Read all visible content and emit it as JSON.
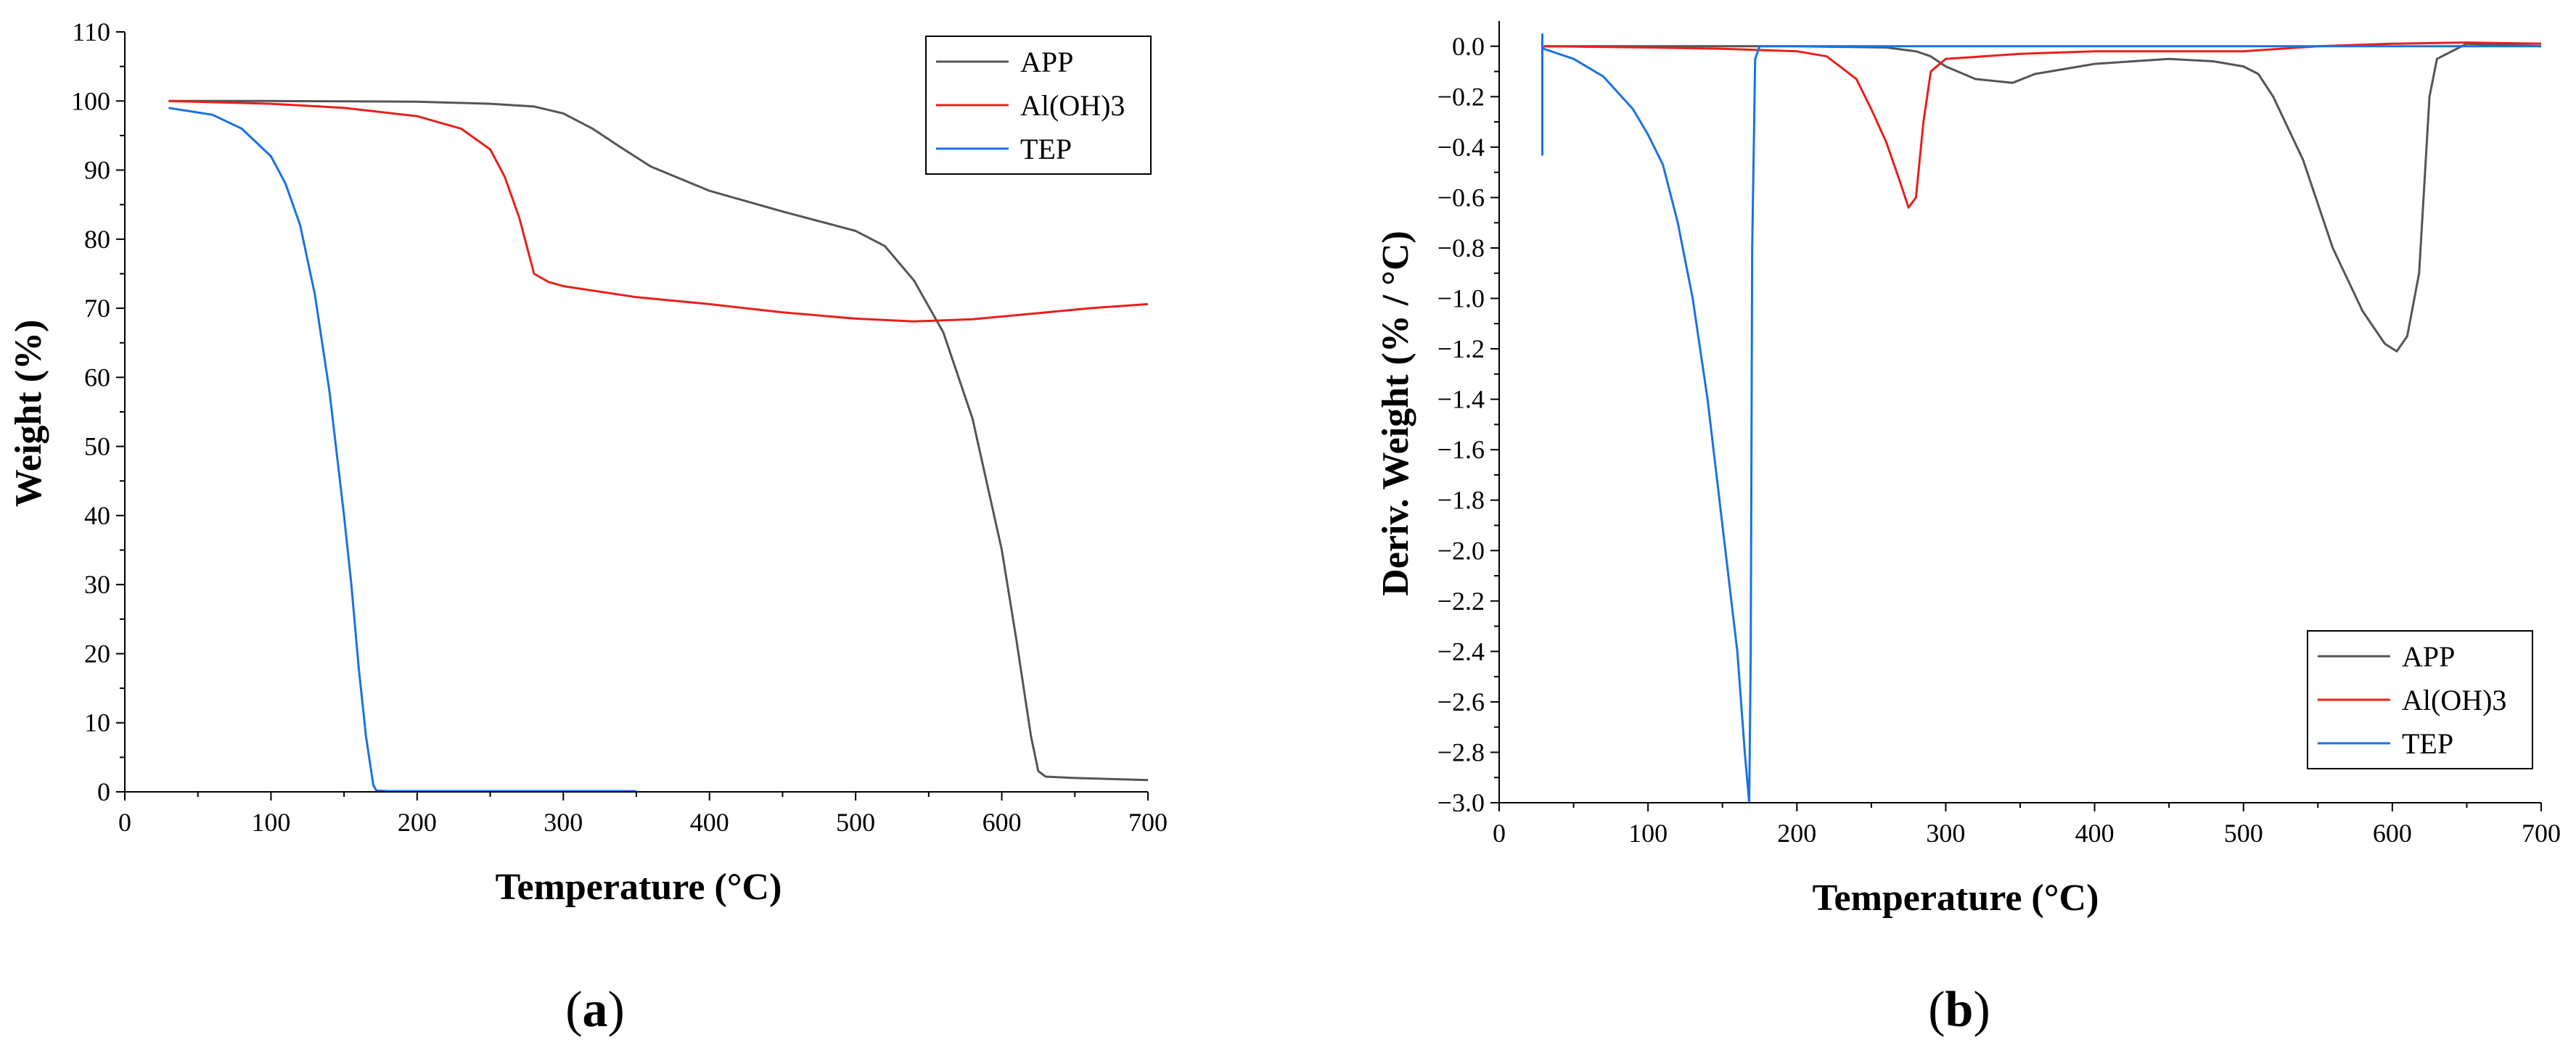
{
  "chart_data": [
    {
      "type": "line",
      "panel_label": {
        "open": "(",
        "letter": "a",
        "close": ")"
      },
      "title": "",
      "xlabel": "Temperature (°C)",
      "ylabel": "Weight (%)",
      "xlim": [
        0,
        700
      ],
      "ylim": [
        0,
        110
      ],
      "xticks": [
        0,
        100,
        200,
        300,
        400,
        500,
        600,
        700
      ],
      "yticks": [
        0,
        10,
        20,
        30,
        40,
        50,
        60,
        70,
        80,
        90,
        100,
        110
      ],
      "grid": false,
      "legend_position": "top-right",
      "series": [
        {
          "name": "APP",
          "color": "#555555",
          "x": [
            30,
            100,
            200,
            250,
            280,
            300,
            320,
            340,
            360,
            400,
            450,
            500,
            520,
            540,
            560,
            580,
            600,
            610,
            620,
            625,
            630,
            650,
            700
          ],
          "y": [
            100,
            100,
            99.9,
            99.6,
            99.2,
            98.2,
            96.0,
            93.2,
            90.5,
            87.0,
            84.0,
            81.2,
            79.0,
            74.0,
            66.5,
            54.0,
            35.0,
            22.0,
            8.0,
            3.0,
            2.2,
            2.0,
            1.7
          ]
        },
        {
          "name": "Al(OH)3",
          "color": "#e8201b",
          "x": [
            30,
            100,
            150,
            200,
            230,
            250,
            260,
            270,
            275,
            280,
            290,
            300,
            350,
            400,
            450,
            500,
            540,
            580,
            620,
            660,
            700
          ],
          "y": [
            100,
            99.6,
            99.0,
            97.8,
            96.0,
            93.0,
            89.0,
            83.0,
            79.0,
            75.0,
            73.8,
            73.2,
            71.6,
            70.6,
            69.4,
            68.5,
            68.1,
            68.4,
            69.2,
            70.0,
            70.6
          ]
        },
        {
          "name": "TEP",
          "color": "#1a72e0",
          "x": [
            30,
            60,
            80,
            100,
            110,
            120,
            130,
            140,
            150,
            155,
            160,
            165,
            170,
            172,
            180,
            250,
            350
          ],
          "y": [
            99.0,
            98.0,
            96.0,
            92.0,
            88.0,
            82.0,
            72.0,
            58.0,
            40.0,
            30.0,
            18.0,
            8.0,
            1.0,
            0.2,
            0.1,
            0.1,
            0.1
          ]
        }
      ]
    },
    {
      "type": "line",
      "panel_label": {
        "open": "(",
        "letter": "b",
        "close": ")"
      },
      "title": "",
      "xlabel": "Temperature (°C)",
      "ylabel": "Deriv. Weight (% / °C)",
      "xlim": [
        0,
        700
      ],
      "ylim": [
        -3.0,
        0.1
      ],
      "xticks": [
        0,
        100,
        200,
        300,
        400,
        500,
        600,
        700
      ],
      "yticks": [
        0.0,
        -0.2,
        -0.4,
        -0.6,
        -0.8,
        -1.0,
        -1.2,
        -1.4,
        -1.6,
        -1.8,
        -2.0,
        -2.2,
        -2.4,
        -2.6,
        -2.8,
        -3.0
      ],
      "ytick_labels": [
        "0.0",
        "−0.2",
        "−0.4",
        "−0.6",
        "−0.8",
        "−1.0",
        "−1.2",
        "−1.4",
        "−1.6",
        "−1.8",
        "−2.0",
        "−2.2",
        "−2.4",
        "−2.6",
        "−2.8",
        "−3.0"
      ],
      "grid": false,
      "legend_position": "bottom-right",
      "series": [
        {
          "name": "APP",
          "color": "#555555",
          "x": [
            30,
            100,
            200,
            260,
            280,
            290,
            300,
            320,
            345,
            360,
            400,
            450,
            480,
            500,
            510,
            520,
            540,
            560,
            580,
            595,
            603,
            610,
            618,
            625,
            630,
            650,
            700
          ],
          "y": [
            0,
            0,
            0,
            -0.005,
            -0.02,
            -0.04,
            -0.08,
            -0.13,
            -0.145,
            -0.11,
            -0.07,
            -0.05,
            -0.06,
            -0.08,
            -0.11,
            -0.2,
            -0.45,
            -0.8,
            -1.05,
            -1.18,
            -1.21,
            -1.15,
            -0.9,
            -0.2,
            -0.05,
            0.01,
            0.0
          ]
        },
        {
          "name": "Al(OH)3",
          "color": "#e8201b",
          "x": [
            30,
            100,
            150,
            200,
            220,
            240,
            250,
            260,
            270,
            275,
            280,
            285,
            290,
            300,
            350,
            400,
            500,
            550,
            600,
            650,
            700
          ],
          "y": [
            0,
            -0.005,
            -0.01,
            -0.02,
            -0.04,
            -0.13,
            -0.25,
            -0.38,
            -0.55,
            -0.64,
            -0.6,
            -0.3,
            -0.1,
            -0.05,
            -0.03,
            -0.02,
            -0.02,
            0.0,
            0.01,
            0.015,
            0.01
          ]
        },
        {
          "name": "TEP",
          "color": "#1a72e0",
          "x": [
            29,
            29,
            29,
            30,
            50,
            70,
            90,
            100,
            110,
            120,
            130,
            140,
            150,
            160,
            165,
            168,
            169,
            170,
            172,
            175,
            200,
            300,
            400,
            500,
            600,
            700
          ],
          "y": [
            0.05,
            -0.43,
            0.0,
            -0.01,
            -0.05,
            -0.12,
            -0.25,
            -0.35,
            -0.47,
            -0.7,
            -1.0,
            -1.4,
            -1.9,
            -2.4,
            -2.8,
            -3.0,
            -2.4,
            -0.8,
            -0.05,
            0.0,
            0.0,
            0.0,
            0.0,
            0.0,
            0.0,
            0.0
          ]
        }
      ]
    }
  ]
}
